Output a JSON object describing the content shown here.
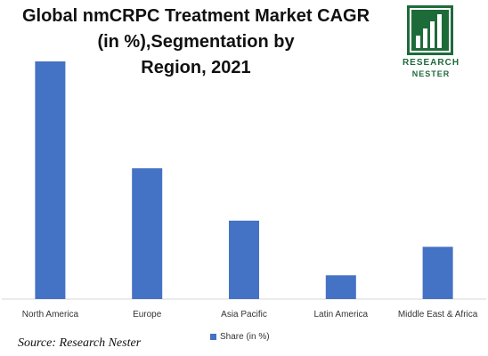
{
  "title_lines": [
    "Global nmCRPC Treatment Market CAGR",
    "(in %),Segmentation by",
    "Region, 2021"
  ],
  "logo": {
    "line1": "RESEARCH",
    "line2": "NESTER",
    "icon": "bar-chart-logo-icon"
  },
  "source": "Source: Research Nester",
  "colors": {
    "bar": "#4472c4",
    "axis": "#d9d9d9",
    "logo": "#1e6b3a"
  },
  "chart_data": {
    "type": "bar",
    "categories": [
      "North America",
      "Europe",
      "Asia Pacific",
      "Latin America",
      "Middle East & Africa"
    ],
    "series": [
      {
        "name": "Share (in %)",
        "values": [
          100,
          55,
          33,
          10,
          22
        ]
      }
    ],
    "ylim": [
      0,
      100
    ],
    "grid": false,
    "legend": "bottom",
    "title": "Global nmCRPC Treatment Market CAGR (in %),Segmentation by Region, 2021",
    "xlabel": "",
    "ylabel": ""
  }
}
